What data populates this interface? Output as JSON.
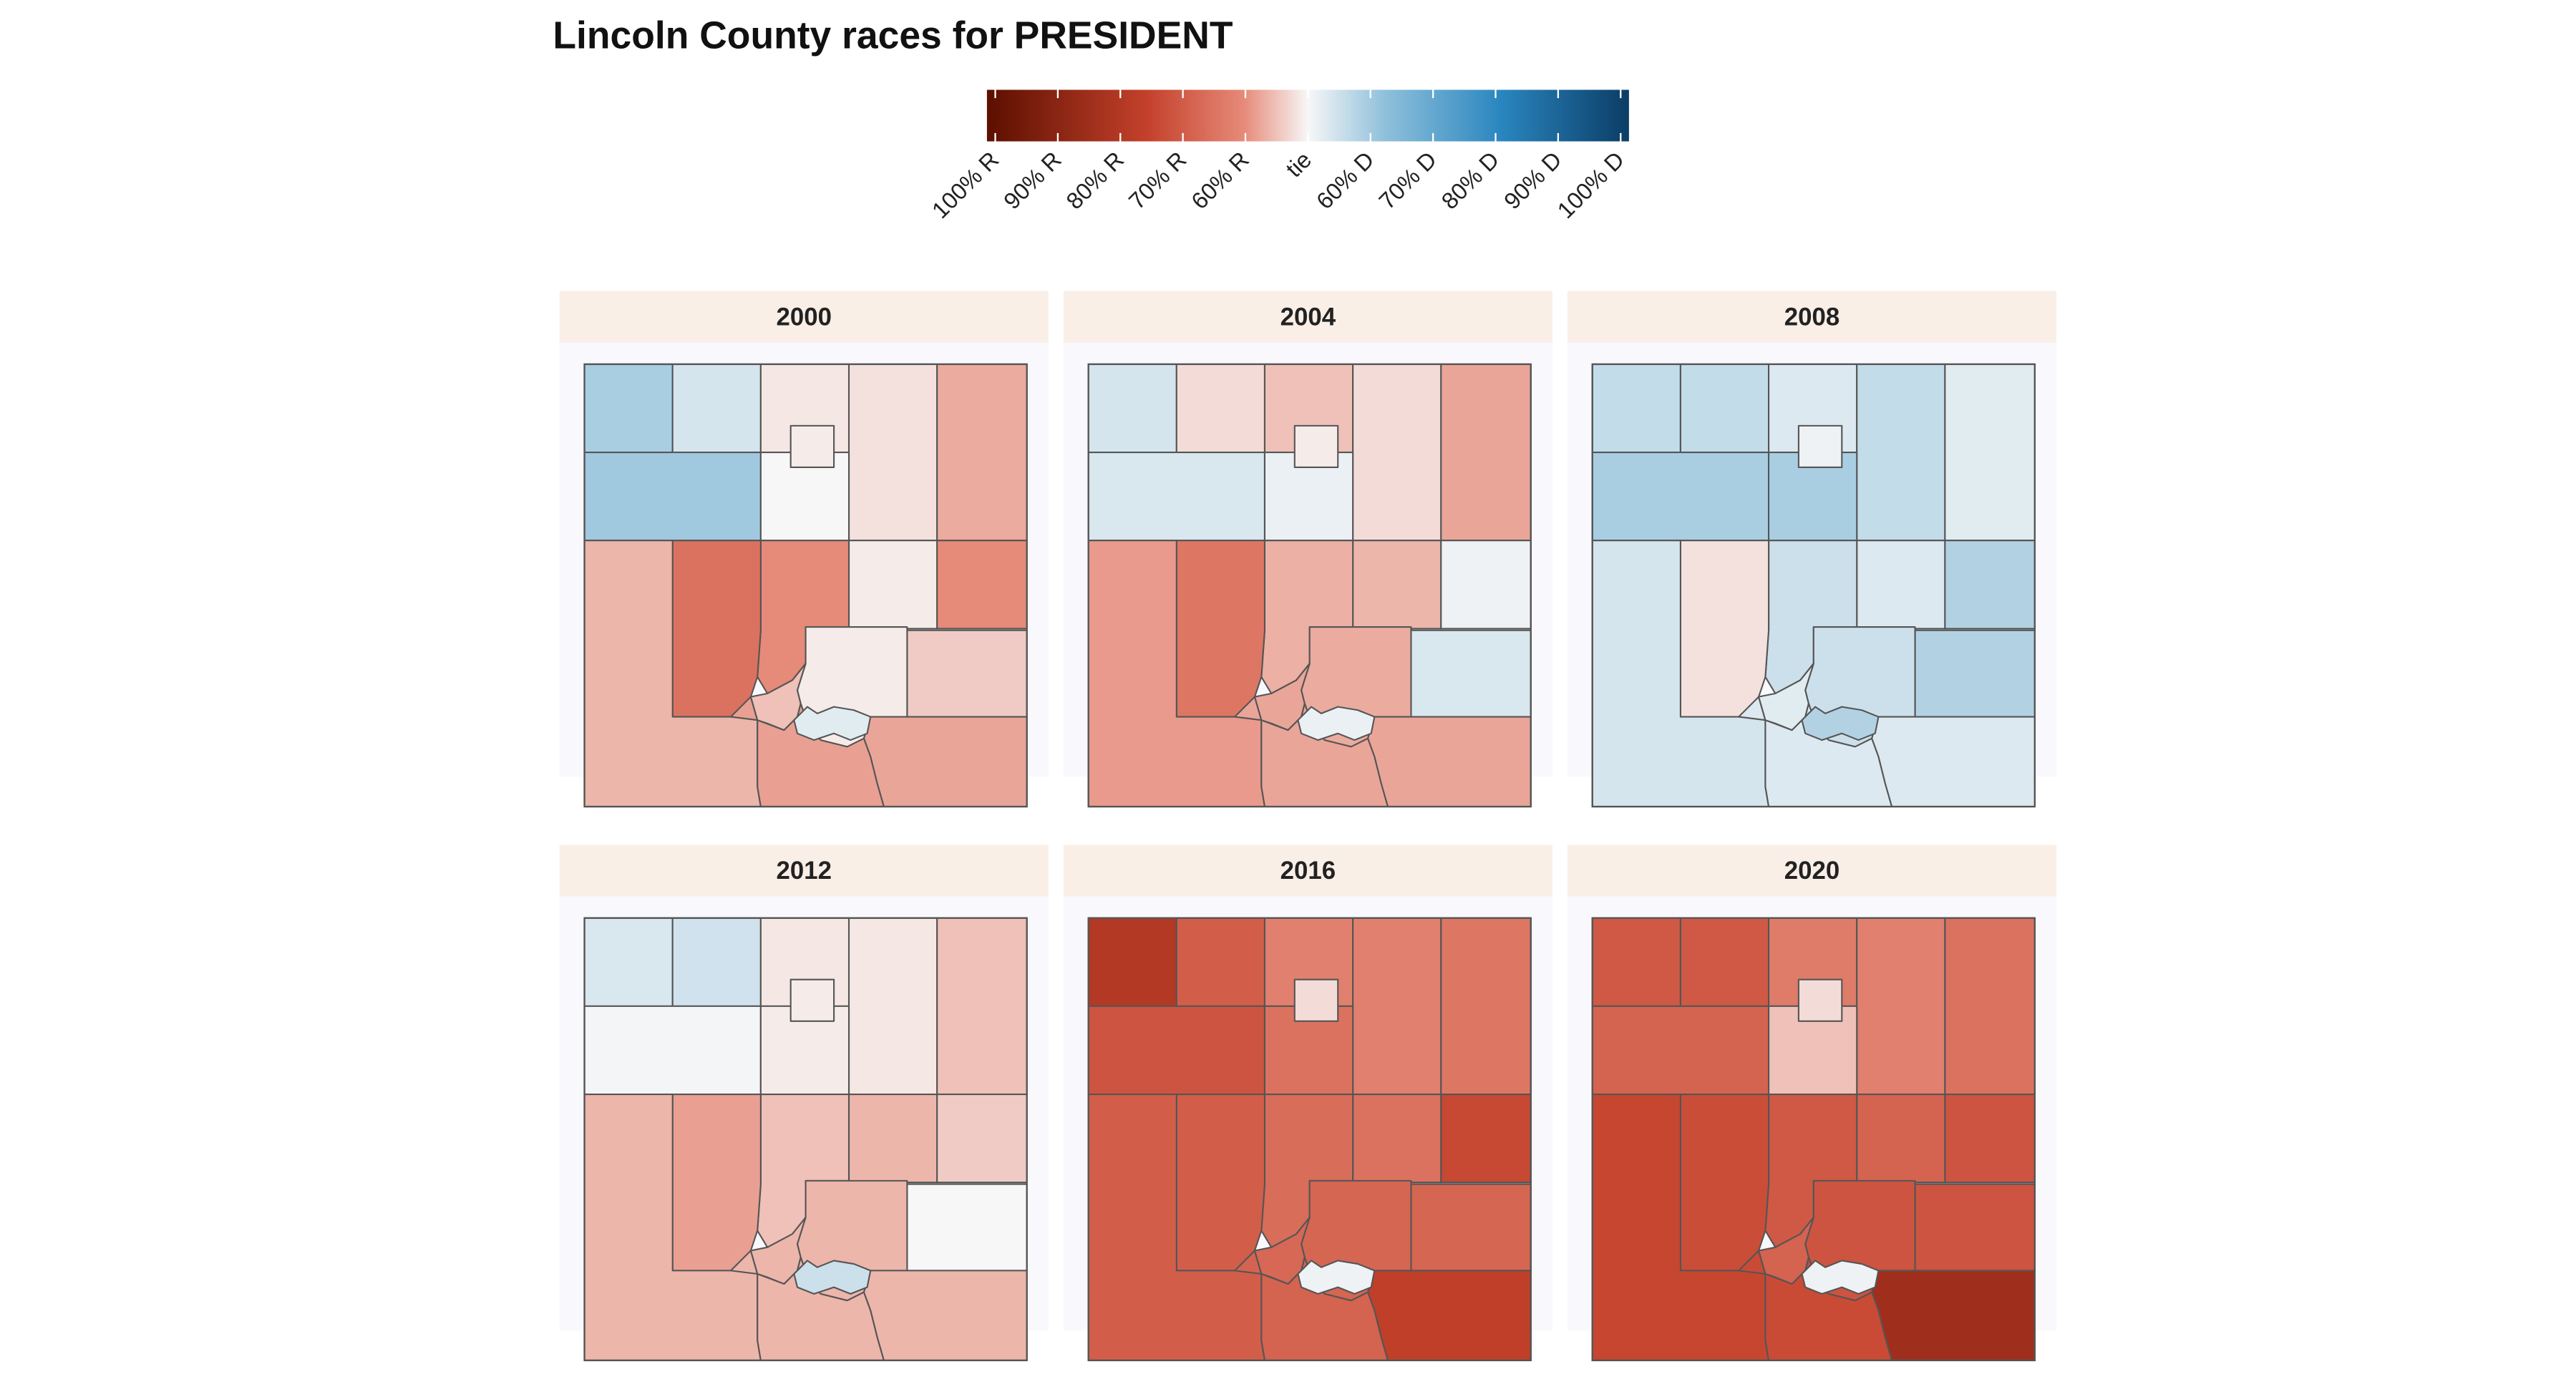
{
  "title": "Lincoln County races for PRESIDENT",
  "legend": {
    "ticks": [
      "100% R",
      "90% R",
      "80% R",
      "70% R",
      "60% R",
      "tie",
      "60% D",
      "70% D",
      "80% D",
      "90% D",
      "100% D"
    ],
    "scale_min": -1,
    "scale_max": 1,
    "colors": {
      "rep_100": "#5c0f00",
      "rep_75": "#c4412b",
      "rep_50": "#e68a79",
      "tie": "#f7f7f7",
      "dem_50": "#8fc0db",
      "dem_75": "#2a86bf",
      "dem_100": "#0b3d66"
    }
  },
  "colors": {
    "panel_bg": "#f8f8fd",
    "strip_bg": "#f9efe6",
    "border": "#555555"
  },
  "chart_data": {
    "type": "choropleth",
    "measure": "margin, negative = R, positive = D",
    "panels": [
      {
        "year": "2000",
        "values": [
          0.18,
          0.08,
          -0.03,
          -0.04,
          -0.14,
          0.2,
          0.0,
          -0.02,
          -0.2,
          -0.3,
          -0.2,
          -0.08,
          -0.02,
          -0.15,
          -0.12,
          -0.16,
          -0.1,
          -0.02,
          0.05
        ]
      },
      {
        "year": "2004",
        "values": [
          0.08,
          -0.05,
          -0.1,
          -0.05,
          -0.15,
          0.07,
          0.03,
          -0.12,
          -0.13,
          -0.28,
          0.02,
          0.07,
          -0.14,
          -0.15,
          -0.17,
          -0.15,
          -0.15,
          -0.02,
          0.03
        ]
      },
      {
        "year": "2008",
        "values": [
          0.12,
          0.12,
          0.06,
          0.12,
          0.05,
          0.18,
          0.18,
          0.06,
          0.1,
          -0.04,
          0.16,
          0.16,
          0.1,
          0.06,
          0.08,
          0.06,
          0.05,
          0.02,
          0.16
        ]
      },
      {
        "year": "2012",
        "values": [
          0.07,
          0.09,
          -0.03,
          -0.03,
          -0.1,
          0.01,
          -0.02,
          -0.12,
          -0.1,
          -0.16,
          -0.08,
          0.0,
          -0.12,
          -0.12,
          -0.12,
          -0.12,
          -0.12,
          -0.02,
          0.1
        ]
      },
      {
        "year": "2016",
        "values": [
          -0.58,
          -0.38,
          -0.24,
          -0.24,
          -0.28,
          -0.42,
          -0.3,
          -0.3,
          -0.32,
          -0.38,
          -0.47,
          -0.35,
          -0.35,
          -0.52,
          -0.38,
          -0.36,
          -0.34,
          -0.05,
          0.02
        ]
      },
      {
        "year": "2020",
        "values": [
          -0.4,
          -0.4,
          -0.26,
          -0.24,
          -0.3,
          -0.36,
          -0.1,
          -0.36,
          -0.4,
          -0.45,
          -0.42,
          -0.42,
          -0.42,
          -0.68,
          -0.48,
          -0.46,
          -0.36,
          -0.05,
          0.02
        ]
      }
    ]
  }
}
